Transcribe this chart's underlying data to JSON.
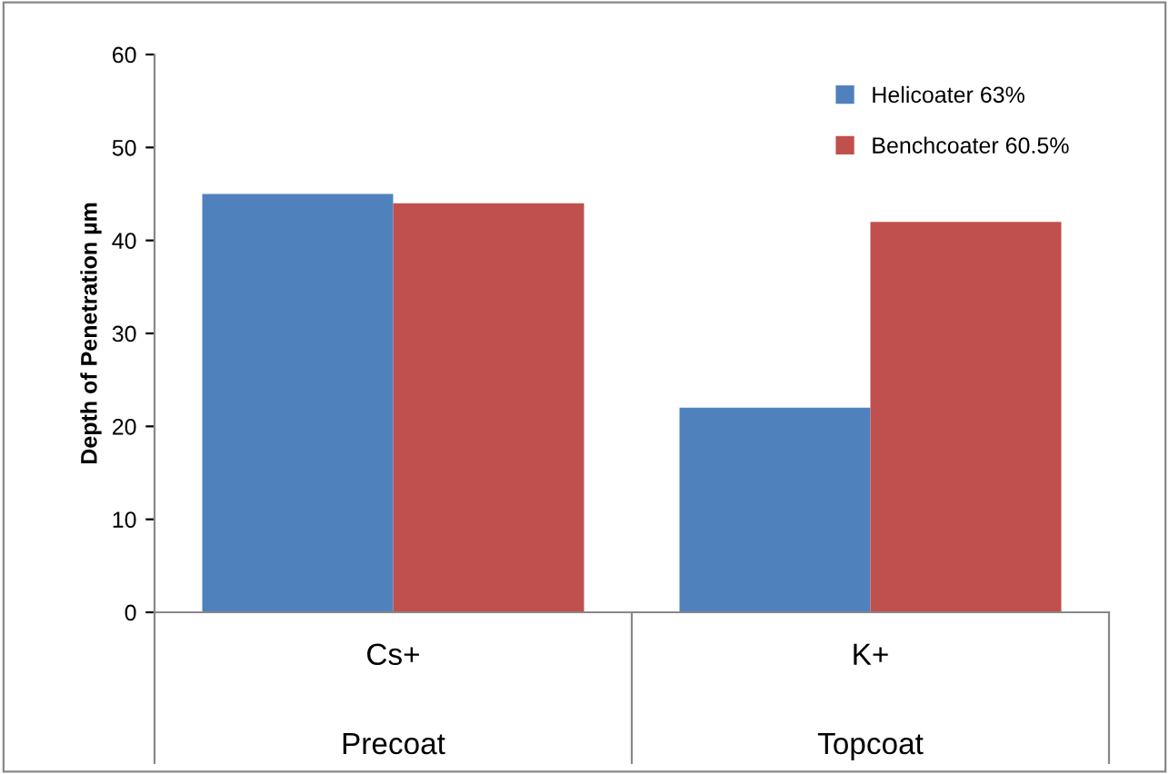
{
  "chart_data": {
    "type": "bar",
    "ylabel": "Depth of Penetration µm",
    "categories": [
      "Cs+",
      "K+"
    ],
    "series": [
      {
        "name": "Helicoater 63%",
        "color": "#4f81bd",
        "values": [
          45,
          22
        ]
      },
      {
        "name": "Benchcoater 60.5%",
        "color": "#c0504d",
        "values": [
          44,
          42
        ]
      }
    ],
    "annotations": [
      "Precoat",
      "Topcoat"
    ],
    "ylim": [
      0,
      60
    ],
    "yticks": [
      0,
      10,
      20,
      30,
      40,
      50,
      60
    ],
    "grid": false,
    "legend": "top right"
  }
}
